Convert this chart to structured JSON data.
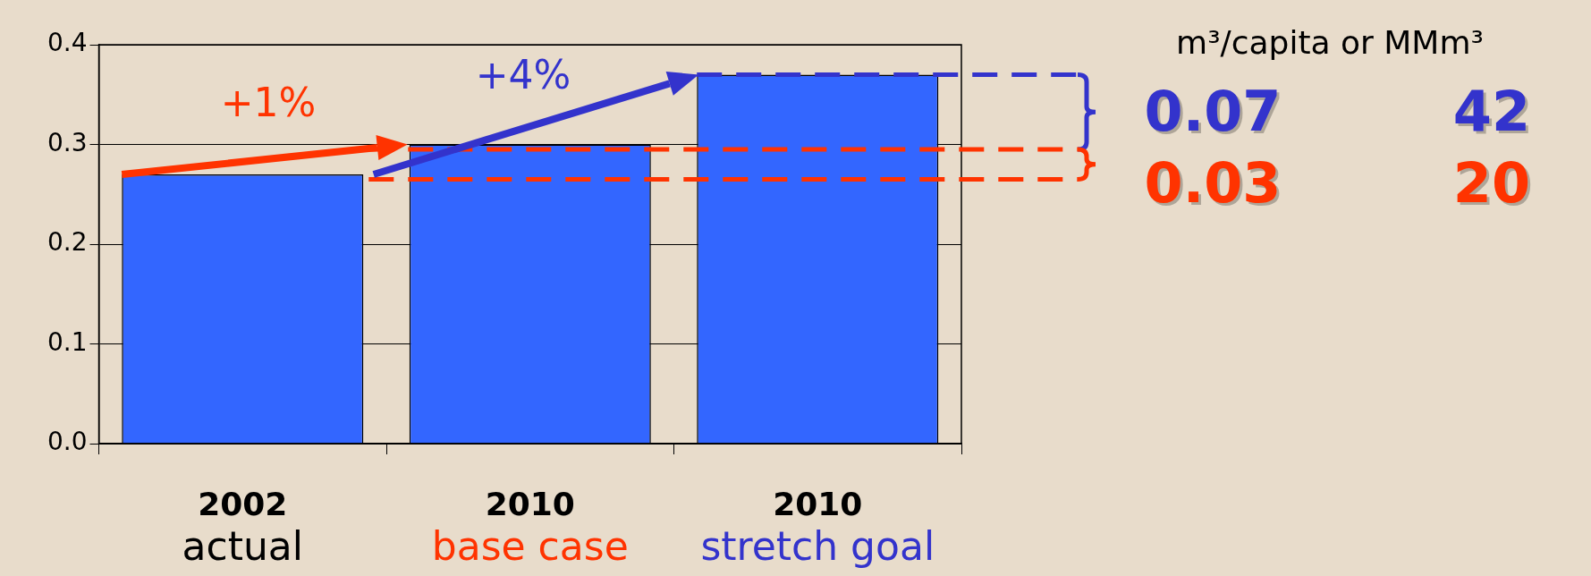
{
  "chart_data": {
    "type": "bar",
    "categories": [
      "2002\nactual",
      "2010\nbase case",
      "2010\nstretch goal"
    ],
    "values": [
      0.27,
      0.3,
      0.37
    ],
    "color": "#3366ff",
    "ylim": [
      0,
      0.4
    ],
    "yticks": [
      {
        "value": 0,
        "label": "0.0"
      },
      0.1,
      0.2,
      0.3,
      0.4
    ],
    "grid": "y",
    "legend": false,
    "ref_lines": [
      {
        "axis": "y",
        "value": 0.37,
        "color": "#3333cc",
        "line_style": "dashed"
      },
      {
        "axis": "y",
        "value": 0.295,
        "color": "#ff3300",
        "line_style": "dashed"
      },
      {
        "axis": "y",
        "value": 0.265,
        "color": "#ff3300",
        "line_style": "dashed"
      }
    ],
    "annotations": [
      "+1%",
      "+4%",
      "m³/capita or MMm³",
      "0.07",
      "42",
      "0.03",
      "20"
    ]
  }
}
